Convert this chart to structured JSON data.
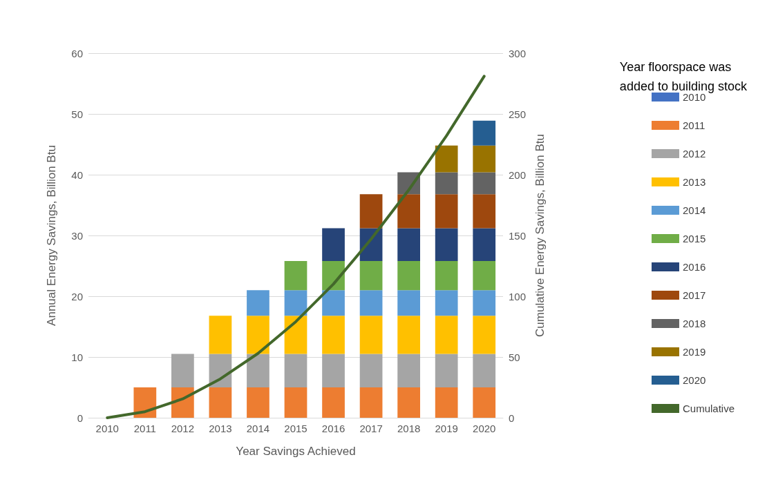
{
  "chart_data": {
    "type": "bar",
    "stacked": true,
    "xlabel": "Year Savings Achieved",
    "ylabel": "Annual Energy Savings, Billion Btu",
    "y2label": "Cumulative Energy Savings, Billion Btu",
    "legend_title": "Year floorspace was\nadded to building stock",
    "legend": "right",
    "grid": "y",
    "categories": [
      "2010",
      "2011",
      "2012",
      "2013",
      "2014",
      "2015",
      "2016",
      "2017",
      "2018",
      "2019",
      "2020"
    ],
    "ylim": [
      0,
      60
    ],
    "yticks": [
      0,
      10,
      20,
      30,
      40,
      50,
      60
    ],
    "y2lim": [
      0,
      300
    ],
    "y2ticks": [
      0,
      50,
      100,
      150,
      200,
      250,
      300
    ],
    "series": [
      {
        "name": "2010",
        "color": "#4472c4",
        "values": [
          0,
          0,
          0,
          0,
          0,
          0,
          0,
          0,
          0,
          0,
          0
        ]
      },
      {
        "name": "2011",
        "color": "#ed7d31",
        "values": [
          null,
          5.0,
          5.0,
          5.0,
          5.0,
          5.0,
          5.0,
          5.0,
          5.0,
          5.0,
          5.0
        ]
      },
      {
        "name": "2012",
        "color": "#a5a5a5",
        "values": [
          null,
          null,
          5.5,
          5.5,
          5.5,
          5.5,
          5.5,
          5.5,
          5.5,
          5.5,
          5.5
        ]
      },
      {
        "name": "2013",
        "color": "#ffc000",
        "values": [
          null,
          null,
          null,
          6.3,
          6.3,
          6.3,
          6.3,
          6.3,
          6.3,
          6.3,
          6.3
        ]
      },
      {
        "name": "2014",
        "color": "#5b9bd5",
        "values": [
          null,
          null,
          null,
          null,
          4.2,
          4.2,
          4.2,
          4.2,
          4.2,
          4.2,
          4.2
        ]
      },
      {
        "name": "2015",
        "color": "#70ad47",
        "values": [
          null,
          null,
          null,
          null,
          null,
          4.8,
          4.8,
          4.8,
          4.8,
          4.8,
          4.8
        ]
      },
      {
        "name": "2016",
        "color": "#264478",
        "values": [
          null,
          null,
          null,
          null,
          null,
          null,
          5.4,
          5.4,
          5.4,
          5.4,
          5.4
        ]
      },
      {
        "name": "2017",
        "color": "#9e480e",
        "values": [
          null,
          null,
          null,
          null,
          null,
          null,
          null,
          5.6,
          5.6,
          5.6,
          5.6
        ]
      },
      {
        "name": "2018",
        "color": "#636363",
        "values": [
          null,
          null,
          null,
          null,
          null,
          null,
          null,
          null,
          3.6,
          3.6,
          3.6
        ]
      },
      {
        "name": "2019",
        "color": "#997300",
        "values": [
          null,
          null,
          null,
          null,
          null,
          null,
          null,
          null,
          null,
          4.4,
          4.4
        ]
      },
      {
        "name": "2020",
        "color": "#255e91",
        "values": [
          null,
          null,
          null,
          null,
          null,
          null,
          null,
          null,
          null,
          null,
          4.1
        ]
      },
      {
        "name": "Cumulative",
        "type": "line",
        "axis": "y2",
        "color": "#43682b",
        "values": [
          0,
          5,
          15.5,
          32,
          53,
          79,
          110,
          147,
          187.5,
          232,
          281
        ]
      }
    ]
  }
}
